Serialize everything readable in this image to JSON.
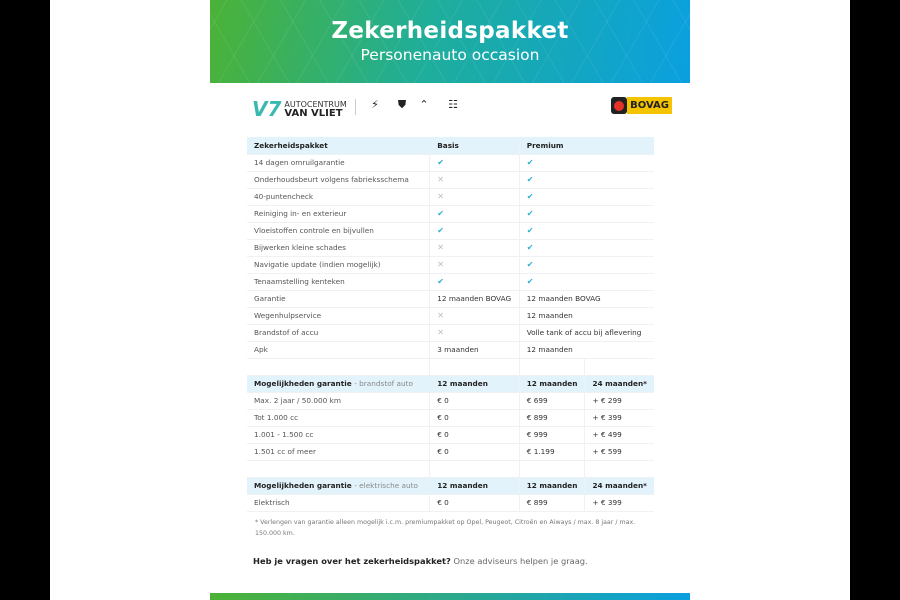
{
  "header": {
    "title": "Zekerheidspakket",
    "subtitle": "Personenauto occasion"
  },
  "logos": {
    "dealer_line1": "AUTOCENTRUM",
    "dealer_line2": "VAN VLIET",
    "brands": [
      "Opel",
      "Peugeot",
      "Citroën",
      "Aiways"
    ],
    "bovag": "BOVAG"
  },
  "package_table": {
    "headers": [
      "Zekerheidspakket",
      "Basis",
      "Premium"
    ],
    "rows": [
      [
        "14 dagen omruilgarantie",
        "check",
        "check"
      ],
      [
        "Onderhoudsbeurt volgens fabrieksschema",
        "cross",
        "check"
      ],
      [
        "40-puntencheck",
        "cross",
        "check"
      ],
      [
        "Reiniging in- en exterieur",
        "check",
        "check"
      ],
      [
        "Vloeistoffen controle en bijvullen",
        "check",
        "check"
      ],
      [
        "Bijwerken kleine schades",
        "cross",
        "check"
      ],
      [
        "Navigatie update (indien mogelijk)",
        "cross",
        "check"
      ],
      [
        "Tenaamstelling kenteken",
        "check",
        "check"
      ],
      [
        "Garantie",
        "12 maanden BOVAG",
        "12 maanden BOVAG"
      ],
      [
        "Wegenhulpservice",
        "cross",
        "12 maanden"
      ],
      [
        "Brandstof of accu",
        "cross",
        "Volle tank of accu bij aflevering"
      ],
      [
        "Apk",
        "3 maanden",
        "12 maanden"
      ]
    ]
  },
  "fuel_table": {
    "title": "Mogelijkheden garantie",
    "subtitle": "- brandstof auto",
    "headers": [
      "12 maanden",
      "12 maanden",
      "24 maanden*"
    ],
    "rows": [
      [
        "Max. 2 jaar / 50.000 km",
        "€ 0",
        "€ 699",
        "+ € 299"
      ],
      [
        "Tot 1.000 cc",
        "€ 0",
        "€ 899",
        "+ € 399"
      ],
      [
        "1.001 - 1.500 cc",
        "€ 0",
        "€ 999",
        "+ € 499"
      ],
      [
        "1.501 cc of meer",
        "€ 0",
        "€ 1.199",
        "+ € 599"
      ]
    ]
  },
  "electric_table": {
    "title": "Mogelijkheden garantie",
    "subtitle": "- elektrische auto",
    "headers": [
      "12 maanden",
      "12 maanden",
      "24 maanden*"
    ],
    "rows": [
      [
        "Elektrisch",
        "€ 0",
        "€ 899",
        "+ € 399"
      ]
    ]
  },
  "footnote": "* Verlengen van garantie alleen mogelijk i.c.m. premiumpakket op Opel, Peugeot, Citroën en Aiways / max. 8 jaar / max. 150.000 km.",
  "question": {
    "bold": "Heb je vragen over het zekerheidspakket?",
    "text": " Onze adviseurs helpen je graag."
  },
  "colors": {
    "check": "#2ab0d8",
    "header_bg": "#e3f3fb",
    "gradient_start": "#4cb236",
    "gradient_end": "#0aa0e0"
  }
}
